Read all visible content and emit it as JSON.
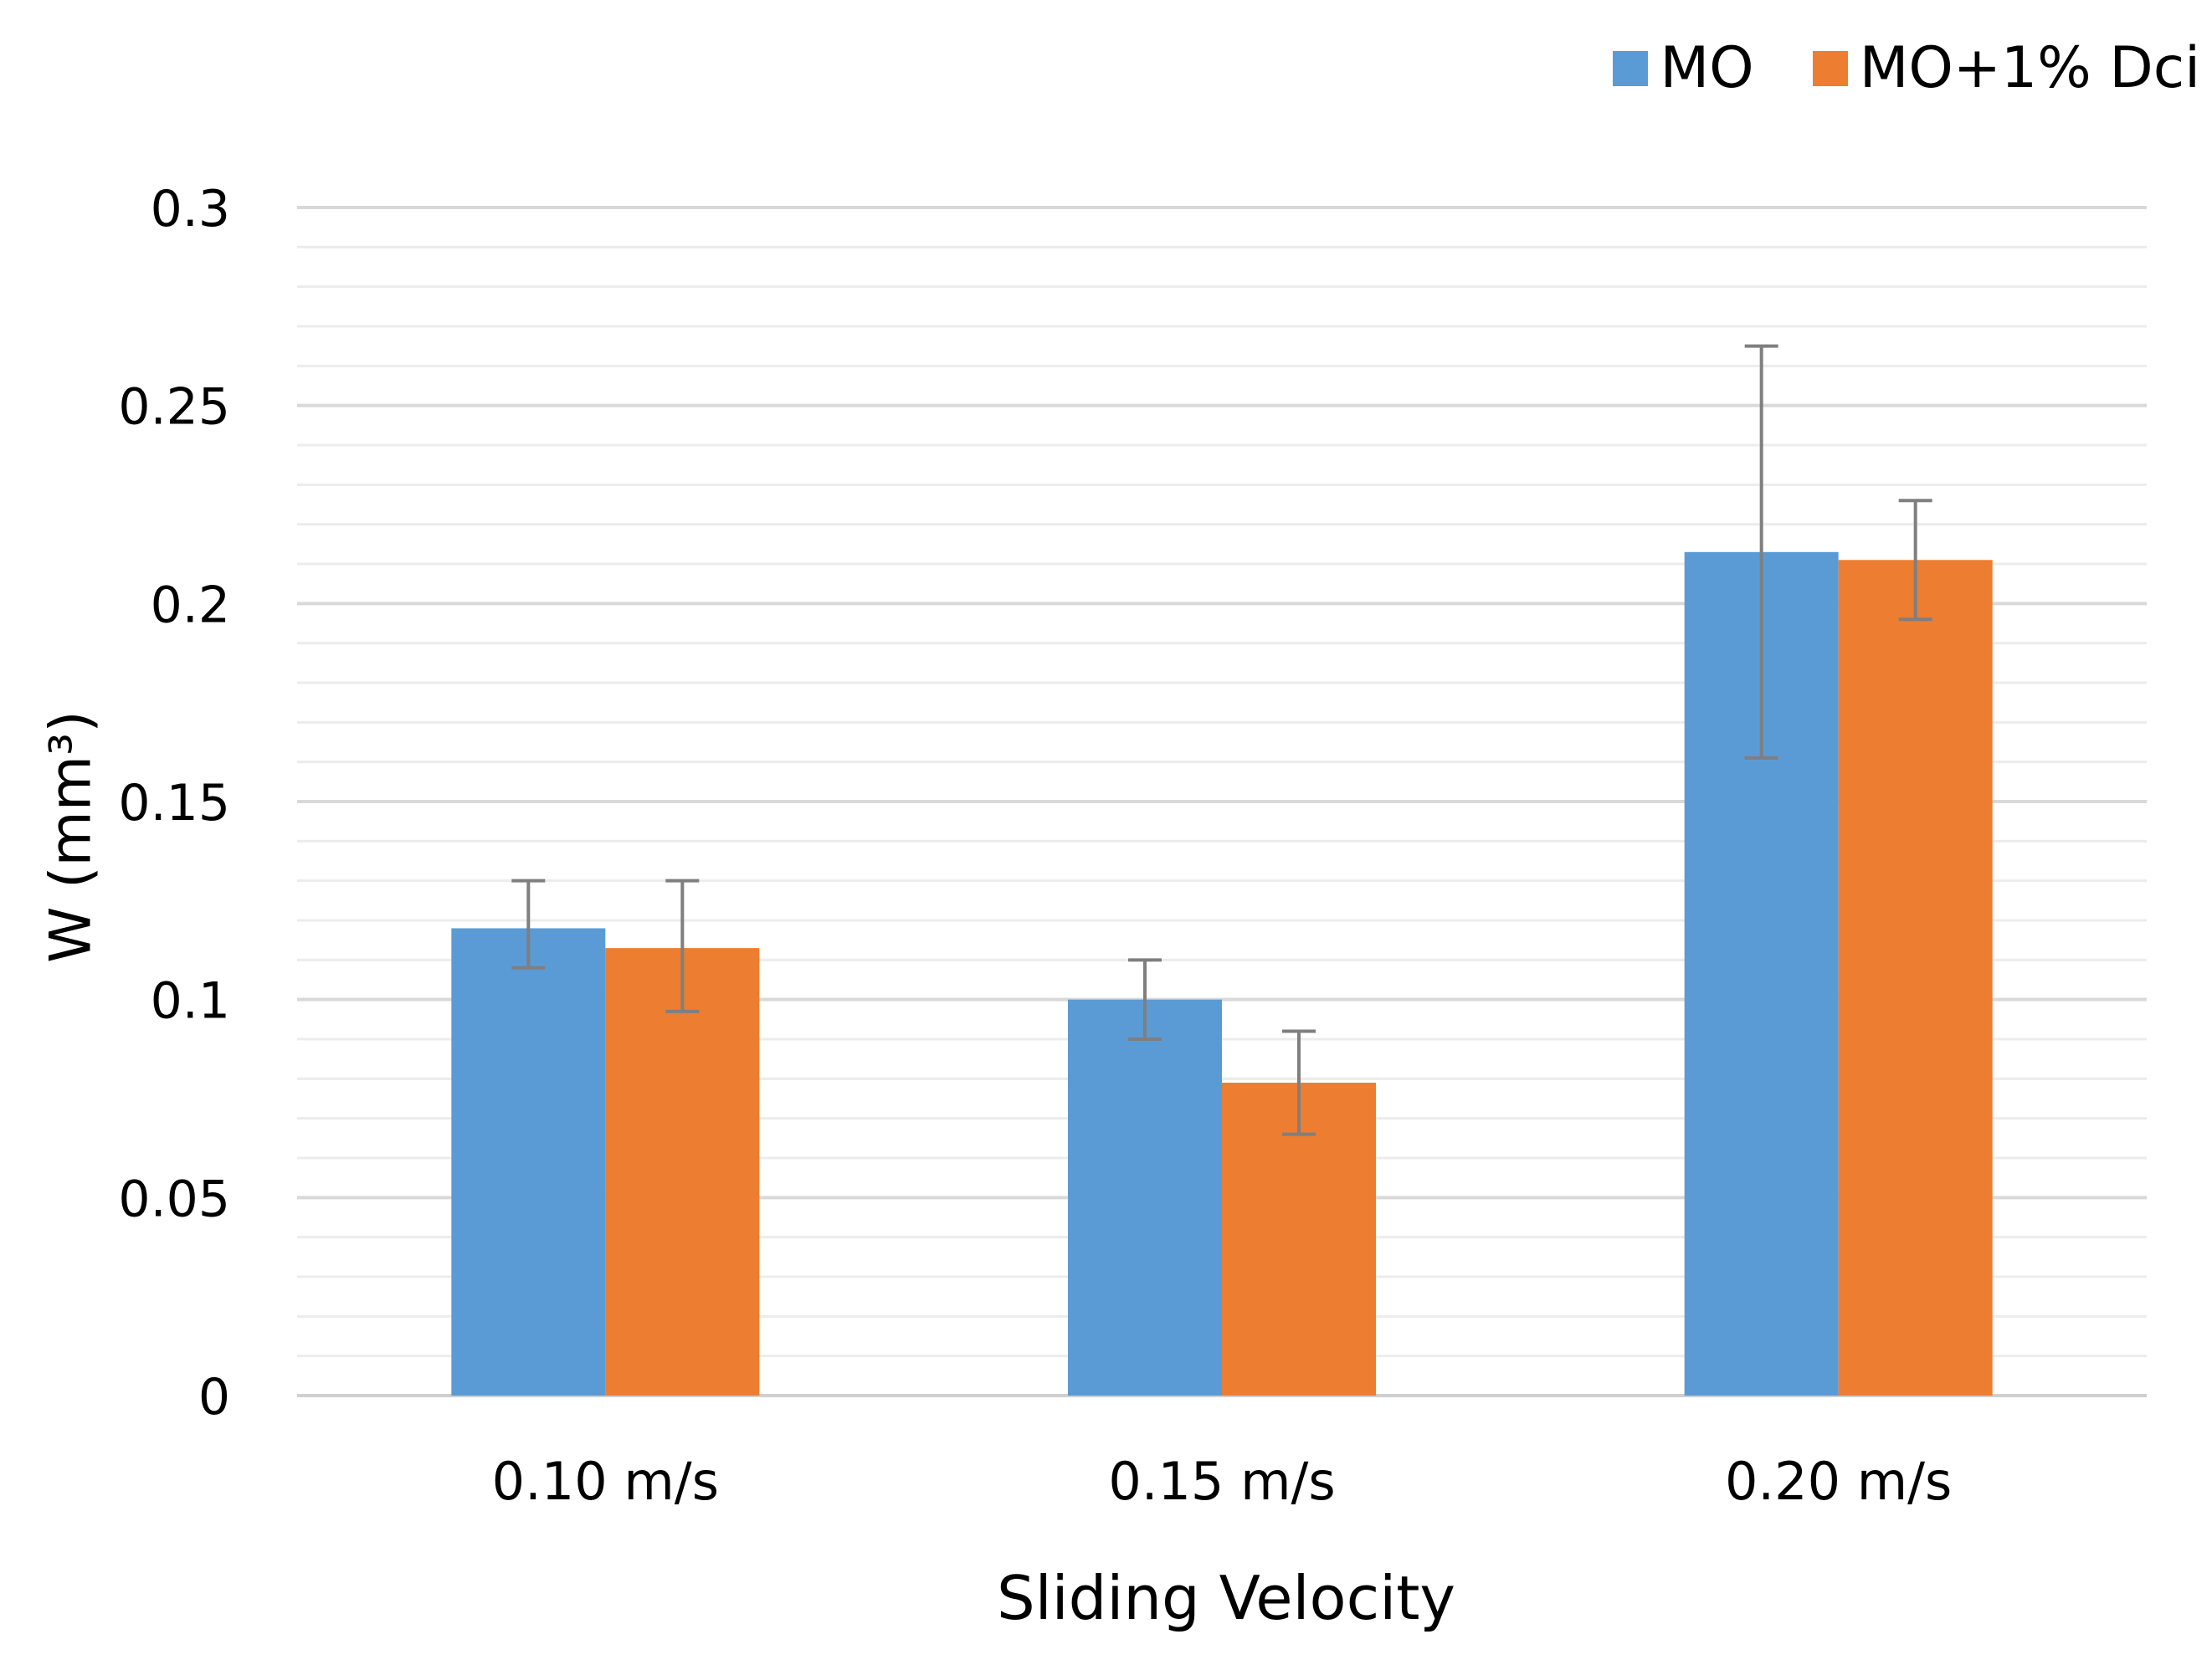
{
  "chart_data": {
    "type": "bar",
    "title": "",
    "xlabel": "Sliding Velocity",
    "ylabel": "W (mm³)",
    "ylim": [
      0,
      0.3
    ],
    "yticks": [
      "0",
      "0.05",
      "0.1",
      "0.15",
      "0.2",
      "0.25",
      "0.3"
    ],
    "grid": true,
    "legend_position": "top-right",
    "categories": [
      "0.10 m/s",
      "0.15 m/s",
      "0.20 m/s"
    ],
    "series": [
      {
        "name": "MO",
        "color": "#5b9bd5",
        "values": [
          0.118,
          0.1,
          0.213
        ],
        "error_low": [
          0.108,
          0.09,
          0.161
        ],
        "error_high": [
          0.13,
          0.11,
          0.265
        ]
      },
      {
        "name": "MO+1% Dci",
        "color": "#ed7d31",
        "values": [
          0.113,
          0.079,
          0.211
        ],
        "error_low": [
          0.097,
          0.066,
          0.196
        ],
        "error_high": [
          0.13,
          0.092,
          0.226
        ]
      }
    ]
  }
}
